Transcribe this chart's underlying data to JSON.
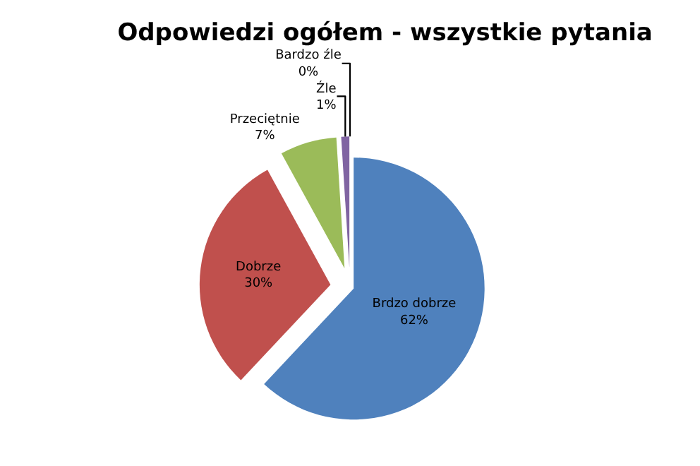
{
  "chart_data": {
    "type": "pie",
    "title": "Odpowiedzi ogółem - wszystkie pytania",
    "categories": [
      "Brdzo dobrze",
      "Dobrze",
      "Przeciętnie",
      "Źle",
      "Bardzo źle"
    ],
    "values": [
      62,
      30,
      7,
      1,
      0
    ],
    "value_labels": [
      "62%",
      "30%",
      "7%",
      "1%",
      "0%"
    ],
    "colors": [
      "#4f81bd",
      "#c0504d",
      "#9bbb59",
      "#8064a2",
      "#4bacc6"
    ],
    "legend": false
  }
}
